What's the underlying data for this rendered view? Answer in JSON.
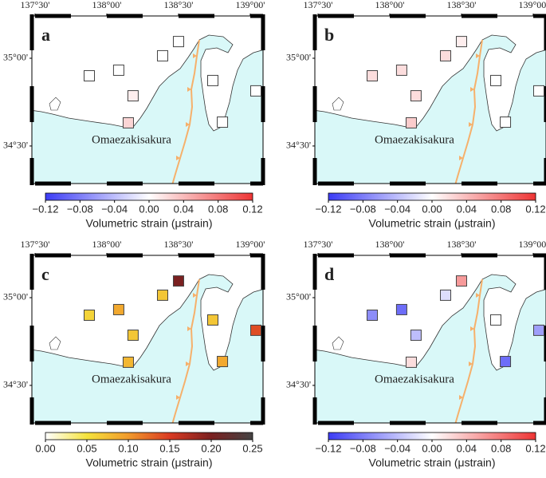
{
  "map": {
    "xlim": [
      137.478,
      139.089
    ],
    "ylim": [
      34.286,
      35.241
    ],
    "xticks": [
      {
        "value": 137.5,
        "label": "137°30'"
      },
      {
        "value": 138,
        "label": "138°00'"
      },
      {
        "value": 138.5,
        "label": "138°30'"
      },
      {
        "value": 139,
        "label": "139°00'"
      }
    ],
    "yticks": [
      {
        "value": 35,
        "label": "35°00'"
      },
      {
        "value": 34.5,
        "label": "34°30'"
      }
    ],
    "place_label": "Omaezakisakura"
  },
  "stations": {
    "lon": [
      138.5,
      138.389,
      138.083,
      137.878,
      138.739,
      139.039,
      138.183,
      138.15,
      138.806
    ],
    "lat": [
      35.095,
      35.014,
      34.932,
      34.9,
      34.873,
      34.814,
      34.786,
      34.632,
      34.636
    ]
  },
  "panels": [
    {
      "label": "a",
      "values": [
        0,
        0,
        0,
        0,
        0,
        0,
        0.01,
        0.025,
        0
      ],
      "colorbar": {
        "lim": [
          -0.12,
          0.12
        ],
        "colors": [
          "#3c3cf5",
          "#ffffff",
          "#ee3434"
        ],
        "label": "Volumetric strain (μstrain)",
        "ticks": [
          {
            "value": -0.12,
            "label": "−0.12"
          },
          {
            "value": -0.08,
            "label": "−0.08"
          },
          {
            "value": -0.04,
            "label": "−0.04"
          },
          {
            "value": 0,
            "label": "0.00"
          },
          0.04,
          0.08,
          0.12
        ]
      }
    },
    {
      "label": "b",
      "values": [
        0.01,
        0.02,
        0.02,
        0.02,
        0,
        0,
        0.02,
        0.03,
        0
      ],
      "colorbar": {
        "lim": [
          -0.12,
          0.12
        ],
        "colors": [
          "#3c3cf5",
          "#ffffff",
          "#ee3434"
        ],
        "label": "Volumetric strain (μstrain)",
        "ticks": [
          {
            "value": -0.12,
            "label": "−0.12"
          },
          {
            "value": -0.08,
            "label": "−0.08"
          },
          {
            "value": -0.04,
            "label": "−0.04"
          },
          {
            "value": 0,
            "label": "0.00"
          },
          0.04,
          0.08,
          0.12
        ]
      }
    },
    {
      "label": "c",
      "values": [
        0.2,
        0.07,
        0.09,
        0.06,
        0.07,
        0.14,
        0.07,
        0.08,
        0.09
      ],
      "colorbar": {
        "lim": [
          0,
          0.25
        ],
        "colors": [
          "#ffffff",
          "#f5e33c",
          "#f19a2c",
          "#d93a22",
          "#7a2020",
          "#444444"
        ],
        "label": "Volumetric strain (μstrain)",
        "ticks": [
          {
            "value": 0,
            "label": "0.00"
          },
          0.05,
          {
            "value": 0.1,
            "label": "0.10"
          },
          0.15,
          {
            "value": 0.2,
            "label": "0.20"
          },
          0.25
        ]
      }
    },
    {
      "label": "d",
      "values": [
        0.06,
        -0.02,
        -0.09,
        -0.07,
        0,
        -0.06,
        -0.04,
        0.02,
        -0.09
      ],
      "colorbar": {
        "lim": [
          -0.12,
          0.12
        ],
        "colors": [
          "#3c3cf5",
          "#ffffff",
          "#ee3434"
        ],
        "label": "Volumetric strain (μstrain)",
        "ticks": [
          {
            "value": -0.12,
            "label": "−0.12"
          },
          {
            "value": -0.08,
            "label": "−0.08"
          },
          {
            "value": -0.04,
            "label": "−0.04"
          },
          {
            "value": 0,
            "label": "0.00"
          },
          0.04,
          0.08,
          0.12
        ]
      }
    }
  ]
}
